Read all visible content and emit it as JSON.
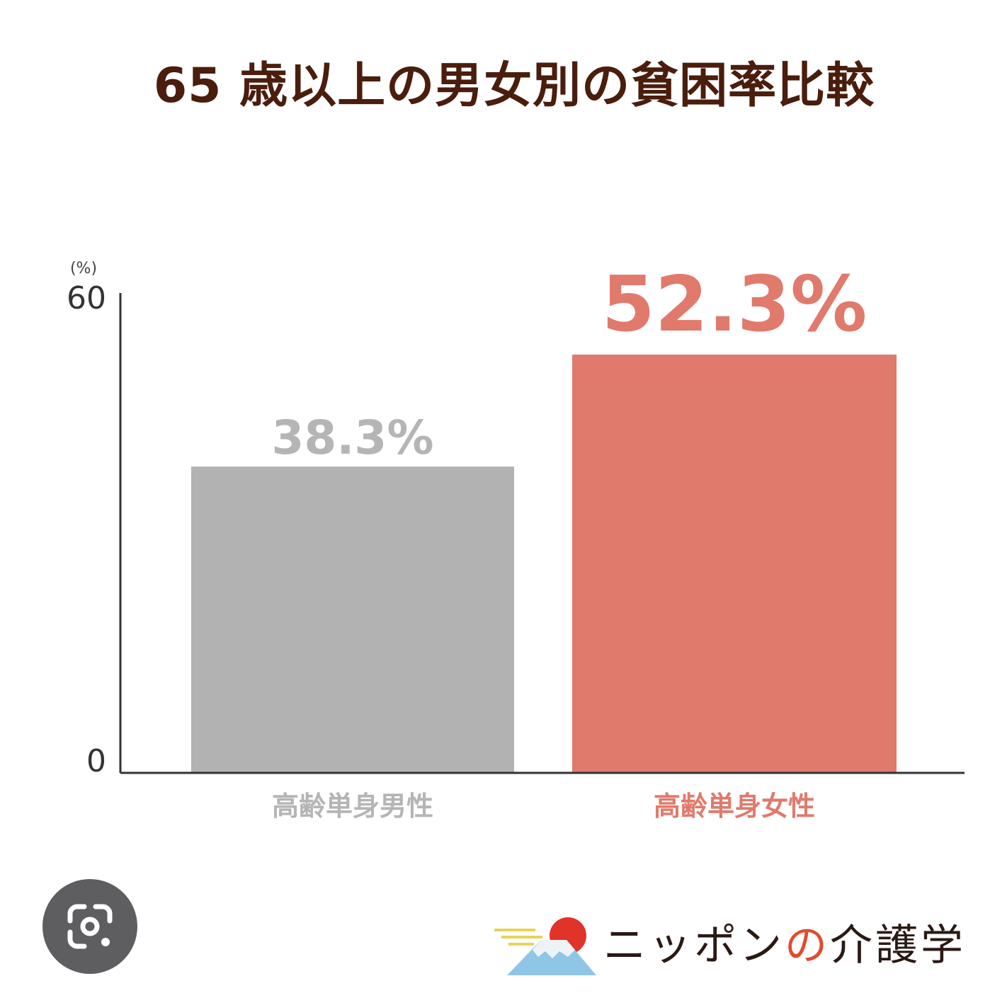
{
  "chart_data": {
    "type": "bar",
    "title": "65 歳以上の男女別の貧困率比較",
    "ylabel": "(%)",
    "ylim": [
      0,
      60
    ],
    "yticks": [
      "0",
      "60"
    ],
    "categories": [
      "高齢単身男性",
      "高齢単身女性"
    ],
    "values": [
      38.3,
      52.3
    ],
    "value_labels": [
      "38.3%",
      "52.3%"
    ],
    "colors": [
      "#b2b2b2",
      "#e07a6c"
    ],
    "label_colors": [
      "#b5b5b5",
      "#e07a6c"
    ],
    "grid": false
  },
  "brand": {
    "text_before": "ニッポン",
    "text_no": "の",
    "text_after": "介護学"
  },
  "icons": {
    "lens": "google-lens-icon",
    "logo": "mount-fuji-sun-logo"
  }
}
